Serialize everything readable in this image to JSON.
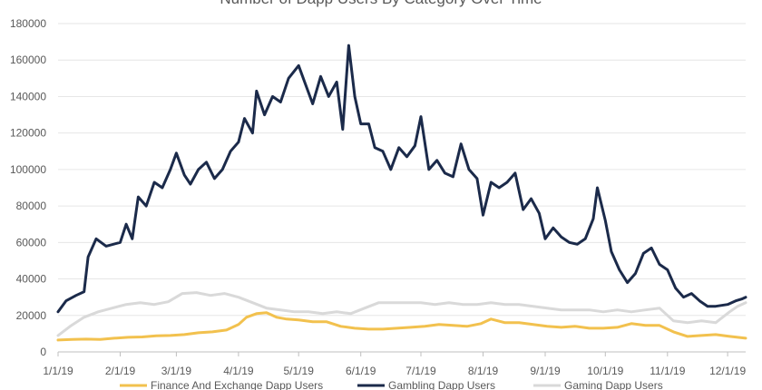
{
  "chart_data": {
    "type": "line",
    "title": "Number of Dapp Users By Category Over Time",
    "xlabel": "",
    "ylabel": "",
    "x_tick_labels": [
      "1/1/19",
      "2/1/19",
      "3/1/19",
      "4/1/19",
      "5/1/19",
      "6/1/19",
      "7/1/19",
      "8/1/19",
      "9/1/19",
      "10/1/19",
      "11/1/19",
      "12/1/19"
    ],
    "y_tick_labels": [
      "0",
      "20000",
      "40000",
      "60000",
      "80000",
      "100000",
      "120000",
      "140000",
      "160000",
      "180000"
    ],
    "ylim": [
      0,
      180000
    ],
    "x_range": [
      "1/1/19",
      "12/10/19"
    ],
    "grid": "horizontal",
    "legend_position": "bottom",
    "series": [
      {
        "name": "Finance And Exchange Dapp Users",
        "color": "#F2C14E",
        "points": [
          [
            "1/1/19",
            6500
          ],
          [
            "1/8/19",
            6800
          ],
          [
            "1/15/19",
            7000
          ],
          [
            "1/22/19",
            6800
          ],
          [
            "1/29/19",
            7500
          ],
          [
            "2/5/19",
            8000
          ],
          [
            "2/12/19",
            8200
          ],
          [
            "2/19/19",
            8800
          ],
          [
            "2/26/19",
            9000
          ],
          [
            "3/5/19",
            9500
          ],
          [
            "3/12/19",
            10500
          ],
          [
            "3/19/19",
            11000
          ],
          [
            "3/26/19",
            12000
          ],
          [
            "4/1/19",
            15000
          ],
          [
            "4/5/19",
            19000
          ],
          [
            "4/10/19",
            21000
          ],
          [
            "4/15/19",
            21500
          ],
          [
            "4/20/19",
            19000
          ],
          [
            "4/25/19",
            18000
          ],
          [
            "5/1/19",
            17500
          ],
          [
            "5/8/19",
            16500
          ],
          [
            "5/15/19",
            16500
          ],
          [
            "5/22/19",
            14000
          ],
          [
            "5/29/19",
            13000
          ],
          [
            "6/5/19",
            12500
          ],
          [
            "6/12/19",
            12500
          ],
          [
            "6/19/19",
            13000
          ],
          [
            "6/26/19",
            13500
          ],
          [
            "7/3/19",
            14000
          ],
          [
            "7/10/19",
            15000
          ],
          [
            "7/17/19",
            14500
          ],
          [
            "7/24/19",
            14000
          ],
          [
            "7/31/19",
            15500
          ],
          [
            "8/5/19",
            18000
          ],
          [
            "8/12/19",
            16000
          ],
          [
            "8/19/19",
            16000
          ],
          [
            "8/26/19",
            15000
          ],
          [
            "9/2/19",
            14000
          ],
          [
            "9/9/19",
            13500
          ],
          [
            "9/16/19",
            14000
          ],
          [
            "9/23/19",
            13000
          ],
          [
            "9/30/19",
            13000
          ],
          [
            "10/7/19",
            13500
          ],
          [
            "10/14/19",
            15500
          ],
          [
            "10/21/19",
            14500
          ],
          [
            "10/28/19",
            14500
          ],
          [
            "11/4/19",
            11000
          ],
          [
            "11/11/19",
            8500
          ],
          [
            "11/18/19",
            9000
          ],
          [
            "11/25/19",
            9500
          ],
          [
            "12/2/19",
            8500
          ],
          [
            "12/10/19",
            7500
          ]
        ]
      },
      {
        "name": "Gambling Dapp Users",
        "color": "#1B2A4A",
        "points": [
          [
            "1/1/19",
            22000
          ],
          [
            "1/5/19",
            28000
          ],
          [
            "1/10/19",
            31000
          ],
          [
            "1/14/19",
            33000
          ],
          [
            "1/16/19",
            52000
          ],
          [
            "1/20/19",
            62000
          ],
          [
            "1/25/19",
            58000
          ],
          [
            "2/1/19",
            60000
          ],
          [
            "2/4/19",
            70000
          ],
          [
            "2/7/19",
            62000
          ],
          [
            "2/10/19",
            85000
          ],
          [
            "2/14/19",
            80000
          ],
          [
            "2/18/19",
            93000
          ],
          [
            "2/22/19",
            90000
          ],
          [
            "2/26/19",
            100000
          ],
          [
            "3/1/19",
            109000
          ],
          [
            "3/5/19",
            97000
          ],
          [
            "3/8/19",
            92000
          ],
          [
            "3/12/19",
            100000
          ],
          [
            "3/16/19",
            104000
          ],
          [
            "3/20/19",
            95000
          ],
          [
            "3/24/19",
            100000
          ],
          [
            "3/28/19",
            110000
          ],
          [
            "4/1/19",
            115000
          ],
          [
            "4/4/19",
            128000
          ],
          [
            "4/8/19",
            120000
          ],
          [
            "4/10/19",
            143000
          ],
          [
            "4/14/19",
            130000
          ],
          [
            "4/18/19",
            140000
          ],
          [
            "4/22/19",
            137000
          ],
          [
            "4/26/19",
            150000
          ],
          [
            "5/1/19",
            157000
          ],
          [
            "5/4/19",
            148000
          ],
          [
            "5/8/19",
            136000
          ],
          [
            "5/12/19",
            151000
          ],
          [
            "5/16/19",
            140000
          ],
          [
            "5/20/19",
            148000
          ],
          [
            "5/23/19",
            122000
          ],
          [
            "5/26/19",
            168000
          ],
          [
            "5/29/19",
            140000
          ],
          [
            "6/1/19",
            125000
          ],
          [
            "6/5/19",
            125000
          ],
          [
            "6/8/19",
            112000
          ],
          [
            "6/12/19",
            110000
          ],
          [
            "6/16/19",
            100000
          ],
          [
            "6/20/19",
            112000
          ],
          [
            "6/24/19",
            107000
          ],
          [
            "6/28/19",
            113000
          ],
          [
            "7/1/19",
            129000
          ],
          [
            "7/5/19",
            100000
          ],
          [
            "7/9/19",
            105000
          ],
          [
            "7/13/19",
            98000
          ],
          [
            "7/17/19",
            96000
          ],
          [
            "7/21/19",
            114000
          ],
          [
            "7/25/19",
            100000
          ],
          [
            "7/29/19",
            95000
          ],
          [
            "8/1/19",
            75000
          ],
          [
            "8/5/19",
            93000
          ],
          [
            "8/9/19",
            90000
          ],
          [
            "8/13/19",
            93000
          ],
          [
            "8/17/19",
            98000
          ],
          [
            "8/21/19",
            78000
          ],
          [
            "8/25/19",
            84000
          ],
          [
            "8/29/19",
            76000
          ],
          [
            "9/1/19",
            62000
          ],
          [
            "9/5/19",
            68000
          ],
          [
            "9/9/19",
            63000
          ],
          [
            "9/13/19",
            60000
          ],
          [
            "9/17/19",
            59000
          ],
          [
            "9/21/19",
            62000
          ],
          [
            "9/25/19",
            73000
          ],
          [
            "9/27/19",
            90000
          ],
          [
            "10/1/19",
            72000
          ],
          [
            "10/4/19",
            55000
          ],
          [
            "10/8/19",
            45000
          ],
          [
            "10/12/19",
            38000
          ],
          [
            "10/16/19",
            43000
          ],
          [
            "10/20/19",
            54000
          ],
          [
            "10/24/19",
            57000
          ],
          [
            "10/28/19",
            48000
          ],
          [
            "11/1/19",
            45000
          ],
          [
            "11/5/19",
            35000
          ],
          [
            "11/9/19",
            30000
          ],
          [
            "11/13/19",
            32000
          ],
          [
            "11/17/19",
            28000
          ],
          [
            "11/21/19",
            25000
          ],
          [
            "11/25/19",
            25000
          ],
          [
            "12/1/19",
            26000
          ],
          [
            "12/5/19",
            28000
          ],
          [
            "12/8/19",
            29000
          ],
          [
            "12/10/19",
            30000
          ]
        ]
      },
      {
        "name": "Gaming Dapp Users",
        "color": "#D9D9D9",
        "points": [
          [
            "1/1/19",
            9000
          ],
          [
            "1/7/19",
            14000
          ],
          [
            "1/14/19",
            19000
          ],
          [
            "1/21/19",
            22000
          ],
          [
            "1/28/19",
            24000
          ],
          [
            "2/4/19",
            26000
          ],
          [
            "2/11/19",
            27000
          ],
          [
            "2/18/19",
            26000
          ],
          [
            "2/25/19",
            27500
          ],
          [
            "3/4/19",
            32000
          ],
          [
            "3/11/19",
            32500
          ],
          [
            "3/18/19",
            31000
          ],
          [
            "3/25/19",
            32000
          ],
          [
            "4/1/19",
            30000
          ],
          [
            "4/8/19",
            27000
          ],
          [
            "4/15/19",
            24000
          ],
          [
            "4/22/19",
            23000
          ],
          [
            "4/29/19",
            22000
          ],
          [
            "5/6/19",
            22000
          ],
          [
            "5/13/19",
            21000
          ],
          [
            "5/20/19",
            22000
          ],
          [
            "5/27/19",
            21000
          ],
          [
            "6/3/19",
            24000
          ],
          [
            "6/10/19",
            27000
          ],
          [
            "6/17/19",
            27000
          ],
          [
            "6/24/19",
            27000
          ],
          [
            "7/1/19",
            27000
          ],
          [
            "7/8/19",
            26000
          ],
          [
            "7/15/19",
            27000
          ],
          [
            "7/22/19",
            26000
          ],
          [
            "7/29/19",
            26000
          ],
          [
            "8/5/19",
            27000
          ],
          [
            "8/12/19",
            26000
          ],
          [
            "8/19/19",
            26000
          ],
          [
            "8/26/19",
            25000
          ],
          [
            "9/2/19",
            24000
          ],
          [
            "9/9/19",
            23000
          ],
          [
            "9/16/19",
            23000
          ],
          [
            "9/23/19",
            23000
          ],
          [
            "9/30/19",
            22000
          ],
          [
            "10/7/19",
            23000
          ],
          [
            "10/14/19",
            22000
          ],
          [
            "10/21/19",
            23000
          ],
          [
            "10/28/19",
            24000
          ],
          [
            "11/4/19",
            17000
          ],
          [
            "11/11/19",
            16000
          ],
          [
            "11/18/19",
            17000
          ],
          [
            "11/25/19",
            16000
          ],
          [
            "12/2/19",
            22000
          ],
          [
            "12/6/19",
            25000
          ],
          [
            "12/10/19",
            27000
          ]
        ]
      }
    ]
  }
}
